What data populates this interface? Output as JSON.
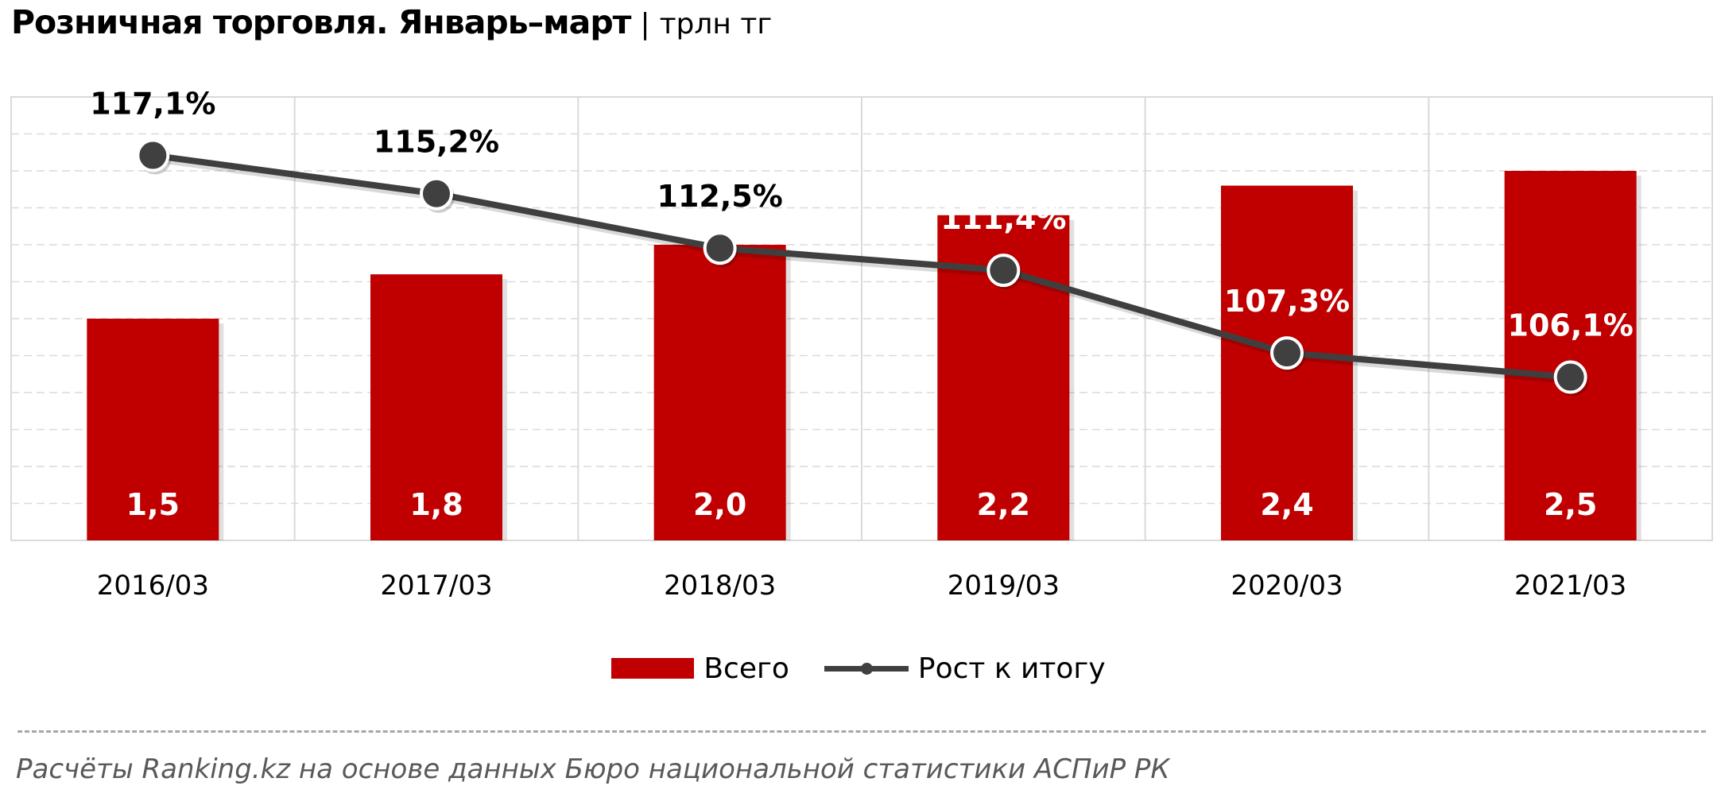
{
  "colors": {
    "bar": "#c00000",
    "line": "#3f3f3f",
    "marker": "#404040",
    "grid": "#dadada",
    "background": "#ffffff"
  },
  "header": {
    "title": "Розничная торговля. Январь–март",
    "separator": "|",
    "unit": "трлн тг"
  },
  "chart_data": {
    "type": "bar",
    "categories": [
      "2016/03",
      "2017/03",
      "2018/03",
      "2019/03",
      "2020/03",
      "2021/03"
    ],
    "series": [
      {
        "name": "Всего",
        "type": "bar",
        "axis": "primary",
        "values": [
          1.5,
          1.8,
          2.0,
          2.2,
          2.4,
          2.5
        ],
        "labels": [
          "1,5",
          "1,8",
          "2,0",
          "2,2",
          "2,4",
          "2,5"
        ]
      },
      {
        "name": "Рост к итогу",
        "type": "line",
        "axis": "secondary",
        "values": [
          117.1,
          115.2,
          112.5,
          111.4,
          107.3,
          106.1
        ],
        "labels": [
          "117,1%",
          "115,2%",
          "112,5%",
          "111,4%",
          "107,3%",
          "106,1%"
        ]
      }
    ],
    "xlabel": "",
    "ylabel": "",
    "ylim": [
      0,
      3.0
    ],
    "y2lim": [
      98,
      120
    ],
    "grid": true,
    "legend_position": "bottom"
  },
  "legend": {
    "bar_label": "Всего",
    "line_label": "Рост к итогу"
  },
  "source": "Расчёты Ranking.kz на основе данных  Бюро национальной  статистики АСПиР РК"
}
